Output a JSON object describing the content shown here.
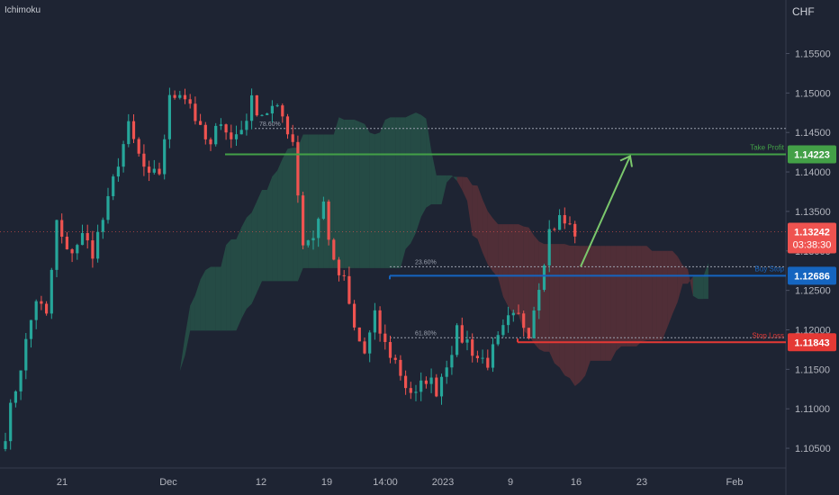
{
  "indicator": "Ichimoku",
  "currency": "CHF",
  "colors": {
    "background": "#1e2433",
    "up": "#26a69a",
    "down": "#ef5350",
    "take_profit": "#43a047",
    "stop_loss": "#e53935",
    "buy_zone": "#1565c0",
    "cloud_green": "#2e7d5a",
    "cloud_red": "#8e3b3b",
    "arrow": "#7bc86c",
    "axis_text": "#b2b5be"
  },
  "chart_data": {
    "type": "candlestick",
    "ylim": [
      1.1025,
      1.1595
    ],
    "y_ticks": [
      "1.15500",
      "1.15000",
      "1.14500",
      "1.14000",
      "1.13500",
      "1.13000",
      "1.12500",
      "1.12000",
      "1.11500",
      "1.11000",
      "1.10500"
    ],
    "x_ticks": [
      "21",
      "Dec",
      "12",
      "19",
      "14:00",
      "2023",
      "9",
      "16",
      "23",
      "Feb"
    ],
    "levels": {
      "take_profit": {
        "label": "Take Profit",
        "value": 1.14223,
        "tag": "1.14223"
      },
      "buy_stop": {
        "label": "Buy Stop",
        "value": 1.12686,
        "tag": "1.12686"
      },
      "stop_loss": {
        "label": "Stop Loss",
        "value": 1.11843,
        "tag": "1.11843"
      }
    },
    "fib_levels": [
      {
        "label": "78.60%",
        "value": 1.1455
      },
      {
        "label": "23.60%",
        "value": 1.128
      },
      {
        "label": "61.80%",
        "value": 1.119
      }
    ],
    "current_price": {
      "value": 1.13242,
      "label": "1.13242",
      "countdown": "03:38:30"
    },
    "projection": {
      "from": {
        "bar": 109,
        "value": 1.128
      },
      "to": {
        "bar": 118,
        "value": 1.142
      }
    },
    "price_path": [
      [
        0,
        1.107
      ],
      [
        3,
        1.1155
      ],
      [
        6,
        1.124
      ],
      [
        8,
        1.1215
      ],
      [
        10,
        1.1335
      ],
      [
        12,
        1.1295
      ],
      [
        15,
        1.1318
      ],
      [
        17,
        1.13
      ],
      [
        20,
        1.136
      ],
      [
        22,
        1.1415
      ],
      [
        24,
        1.1455
      ],
      [
        26,
        1.142
      ],
      [
        28,
        1.139
      ],
      [
        30,
        1.14
      ],
      [
        32,
        1.149
      ],
      [
        34,
        1.1505
      ],
      [
        36,
        1.1488
      ],
      [
        38,
        1.145
      ],
      [
        40,
        1.143
      ],
      [
        42,
        1.147
      ],
      [
        44,
        1.144
      ],
      [
        46,
        1.1455
      ],
      [
        48,
        1.1488
      ],
      [
        50,
        1.1475
      ],
      [
        52,
        1.148
      ],
      [
        54,
        1.147
      ],
      [
        56,
        1.144
      ],
      [
        58,
        1.131
      ],
      [
        60,
        1.132
      ],
      [
        62,
        1.136
      ],
      [
        64,
        1.128
      ],
      [
        66,
        1.126
      ],
      [
        68,
        1.12
      ],
      [
        70,
        1.117
      ],
      [
        72,
        1.1215
      ],
      [
        74,
        1.118
      ],
      [
        76,
        1.116
      ],
      [
        78,
        1.113
      ],
      [
        80,
        1.1115
      ],
      [
        82,
        1.114
      ],
      [
        84,
        1.1125
      ],
      [
        86,
        1.116
      ],
      [
        88,
        1.1195
      ],
      [
        90,
        1.1185
      ],
      [
        92,
        1.1165
      ],
      [
        94,
        1.116
      ],
      [
        96,
        1.1185
      ],
      [
        98,
        1.121
      ],
      [
        100,
        1.1215
      ],
      [
        102,
        1.12
      ],
      [
        104,
        1.126
      ],
      [
        106,
        1.1325
      ],
      [
        108,
        1.134
      ],
      [
        110,
        1.133
      ],
      [
        111,
        1.1324
      ]
    ]
  }
}
